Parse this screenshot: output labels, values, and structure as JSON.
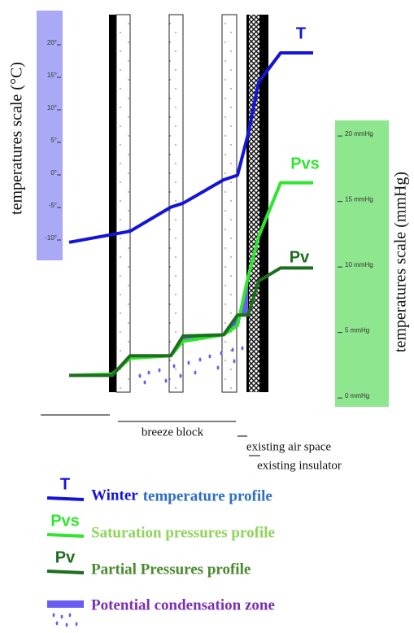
{
  "chart_data": {
    "type": "line",
    "y_label": "temperatures scale (°C)",
    "y2_label": "temperatures scale (mmHg)",
    "ylim": [
      -13,
      25
    ],
    "yticks": [
      {
        "value": 20,
        "label": "20°"
      },
      {
        "value": 15,
        "label": "15°"
      },
      {
        "value": 10,
        "label": "10°"
      },
      {
        "value": 5,
        "label": "5°"
      },
      {
        "value": 0,
        "label": "0°"
      },
      {
        "value": -5,
        "label": "-5°"
      },
      {
        "value": -10,
        "label": "-10°"
      }
    ],
    "y2lim": [
      -0.8,
      21
    ],
    "y2ticks": [
      {
        "value": 20,
        "label": "20 mmHg"
      },
      {
        "value": 15,
        "label": "15 mmHg"
      },
      {
        "value": 10,
        "label": "10 mmHg"
      },
      {
        "value": 5,
        "label": "5 mmHg"
      },
      {
        "value": 0,
        "label": "0 mmHg"
      }
    ],
    "categories": [
      null,
      null,
      null,
      null,
      null,
      null,
      null,
      null,
      null,
      null,
      null
    ],
    "series": [
      {
        "name": "T",
        "color": "#1414d8",
        "legend_emphasis": "Winter",
        "legend_text": "temperature profile",
        "values": [
          -10.6,
          -9.4,
          -8.9,
          -5.2,
          -4.6,
          -1,
          -0.3,
          6,
          14,
          18.5,
          18.5
        ]
      },
      {
        "name": "Pvs",
        "color": "#2fe62f",
        "axis": "y2",
        "legend_text": "Saturation pressures profile",
        "values": [
          1.6,
          1.7,
          2.9,
          3.1,
          4.2,
          4.7,
          5.4,
          9.1,
          12.2,
          16.3,
          16.3
        ]
      },
      {
        "name": "Pv",
        "color": "#1d6e1d",
        "axis": "y2",
        "legend_text": "Partial Pressures profile",
        "values": [
          1.6,
          1.6,
          3.1,
          3.1,
          4.6,
          4.7,
          6.2,
          6.2,
          8.8,
          9.8,
          9.8
        ]
      }
    ],
    "condensation_color": "#6a5cf0",
    "condensation_label": "Potential condensation zone",
    "layer_labels": [
      "breeze block",
      "existing air space",
      "existing insulator"
    ]
  }
}
